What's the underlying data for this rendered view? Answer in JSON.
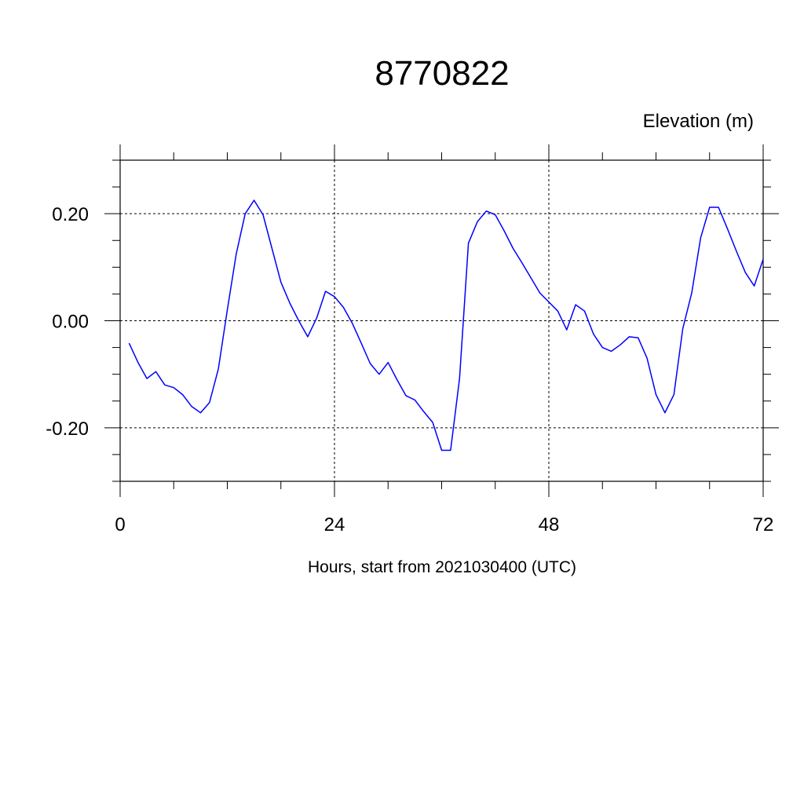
{
  "chart_data": {
    "type": "line",
    "title": "8770822",
    "ylabel": "Elevation (m)",
    "xlabel": "Hours, start from 2021030400 (UTC)",
    "xlim": [
      0,
      72
    ],
    "ylim": [
      -0.3,
      0.3
    ],
    "x_ticks": [
      0,
      24,
      48,
      72
    ],
    "x_tick_labels": [
      "0",
      "24",
      "48",
      "72"
    ],
    "y_ticks": [
      -0.2,
      0.0,
      0.2
    ],
    "y_tick_labels": [
      "-0.20",
      "0.00",
      "0.20"
    ],
    "grid": "dashed at major ticks",
    "series_color": "#0000ff",
    "series": [
      {
        "x": [
          1,
          2,
          3,
          4,
          5,
          6,
          7,
          8,
          9,
          10,
          11,
          12,
          13,
          14,
          15,
          16,
          17,
          18,
          19,
          20,
          21,
          22,
          23,
          24,
          25,
          26,
          27,
          28,
          29,
          30,
          31,
          32,
          33,
          34,
          35,
          36,
          37,
          38,
          39,
          40,
          41,
          42,
          43,
          44,
          45,
          46,
          47,
          48,
          49,
          50,
          51,
          52,
          53,
          54,
          55,
          56,
          57,
          58,
          59,
          60,
          61,
          62,
          63,
          64,
          65,
          66,
          67,
          68,
          69,
          70,
          71,
          72
        ],
        "y": [
          -0.042,
          -0.078,
          -0.108,
          -0.095,
          -0.12,
          -0.125,
          -0.138,
          -0.16,
          -0.172,
          -0.153,
          -0.09,
          0.02,
          0.125,
          0.2,
          0.225,
          0.198,
          0.135,
          0.072,
          0.033,
          0.0,
          -0.03,
          0.005,
          0.055,
          0.045,
          0.025,
          -0.005,
          -0.042,
          -0.08,
          -0.1,
          -0.078,
          -0.11,
          -0.14,
          -0.148,
          -0.17,
          -0.19,
          -0.242,
          -0.242,
          -0.108,
          0.145,
          0.185,
          0.205,
          0.198,
          0.168,
          0.135,
          0.108,
          0.08,
          0.052,
          0.035,
          0.018,
          -0.017,
          0.03,
          0.018,
          -0.025,
          -0.05,
          -0.057,
          -0.045,
          -0.03,
          -0.032,
          -0.07,
          -0.138,
          -0.172,
          -0.138,
          -0.015,
          0.052,
          0.155,
          0.212,
          0.212,
          0.172,
          0.13,
          0.09,
          0.065,
          0.115
        ]
      }
    ]
  }
}
